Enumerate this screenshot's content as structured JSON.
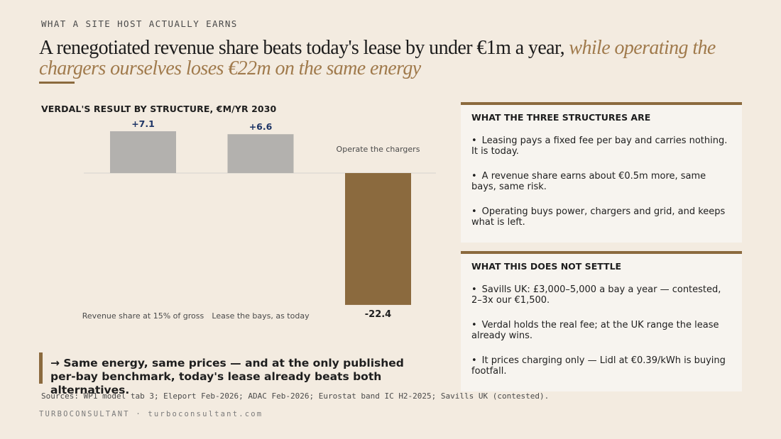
{
  "kicker": "WHAT A SITE HOST ACTUALLY EARNS",
  "headline": {
    "plain": "A renegotiated revenue share beats today's lease by under €1m a year, ",
    "accent": "while operating the chargers ourselves loses €22m on the same energy"
  },
  "colors": {
    "accent": "#8b6a3e",
    "neutral_bar": "#b3b1ae",
    "negative_bar": "#8b6a3e",
    "positive_label": "#1e3566",
    "background": "#f3ebe0"
  },
  "chart_data": {
    "type": "bar",
    "title": "VERDAL'S RESULT BY STRUCTURE, €M/YR 2030",
    "categories": [
      "Revenue share at 15% of gross",
      "Lease the bays, as today",
      "Operate the chargers"
    ],
    "values": [
      7.1,
      6.6,
      -22.4
    ],
    "value_labels": [
      "+7.1",
      "+6.6",
      "-22.4"
    ],
    "ylim": [
      -22.4,
      7.1
    ],
    "grid": false,
    "legend": "none",
    "xlabel": "",
    "ylabel": ""
  },
  "cards": [
    {
      "title": "WHAT THE THREE STRUCTURES ARE",
      "items": [
        "Leasing pays a fixed fee per bay and carries nothing. It is today.",
        "A revenue share earns about €0.5m more, same bays, same risk.",
        "Operating buys power, chargers and grid, and keeps what is left."
      ]
    },
    {
      "title": "WHAT THIS DOES NOT SETTLE",
      "items": [
        "Savills UK: £3,000–5,000 a bay a year — contested, 2–3x our €1,500.",
        "Verdal holds the real fee; at the UK range the lease already wins.",
        "It prices charging only — Lidl at €0.39/kWh is buying footfall."
      ]
    }
  ],
  "takeaway": "→ Same energy, same prices — and at the only published per-bay benchmark, today's lease already beats both alternatives.",
  "sources": "Sources: WP1 model tab 3; Eleport Feb-2026; ADAC Feb-2026; Eurostat band IC H2-2025; Savills UK (contested).",
  "footer": "TURBOCONSULTANT · turboconsultant.com"
}
